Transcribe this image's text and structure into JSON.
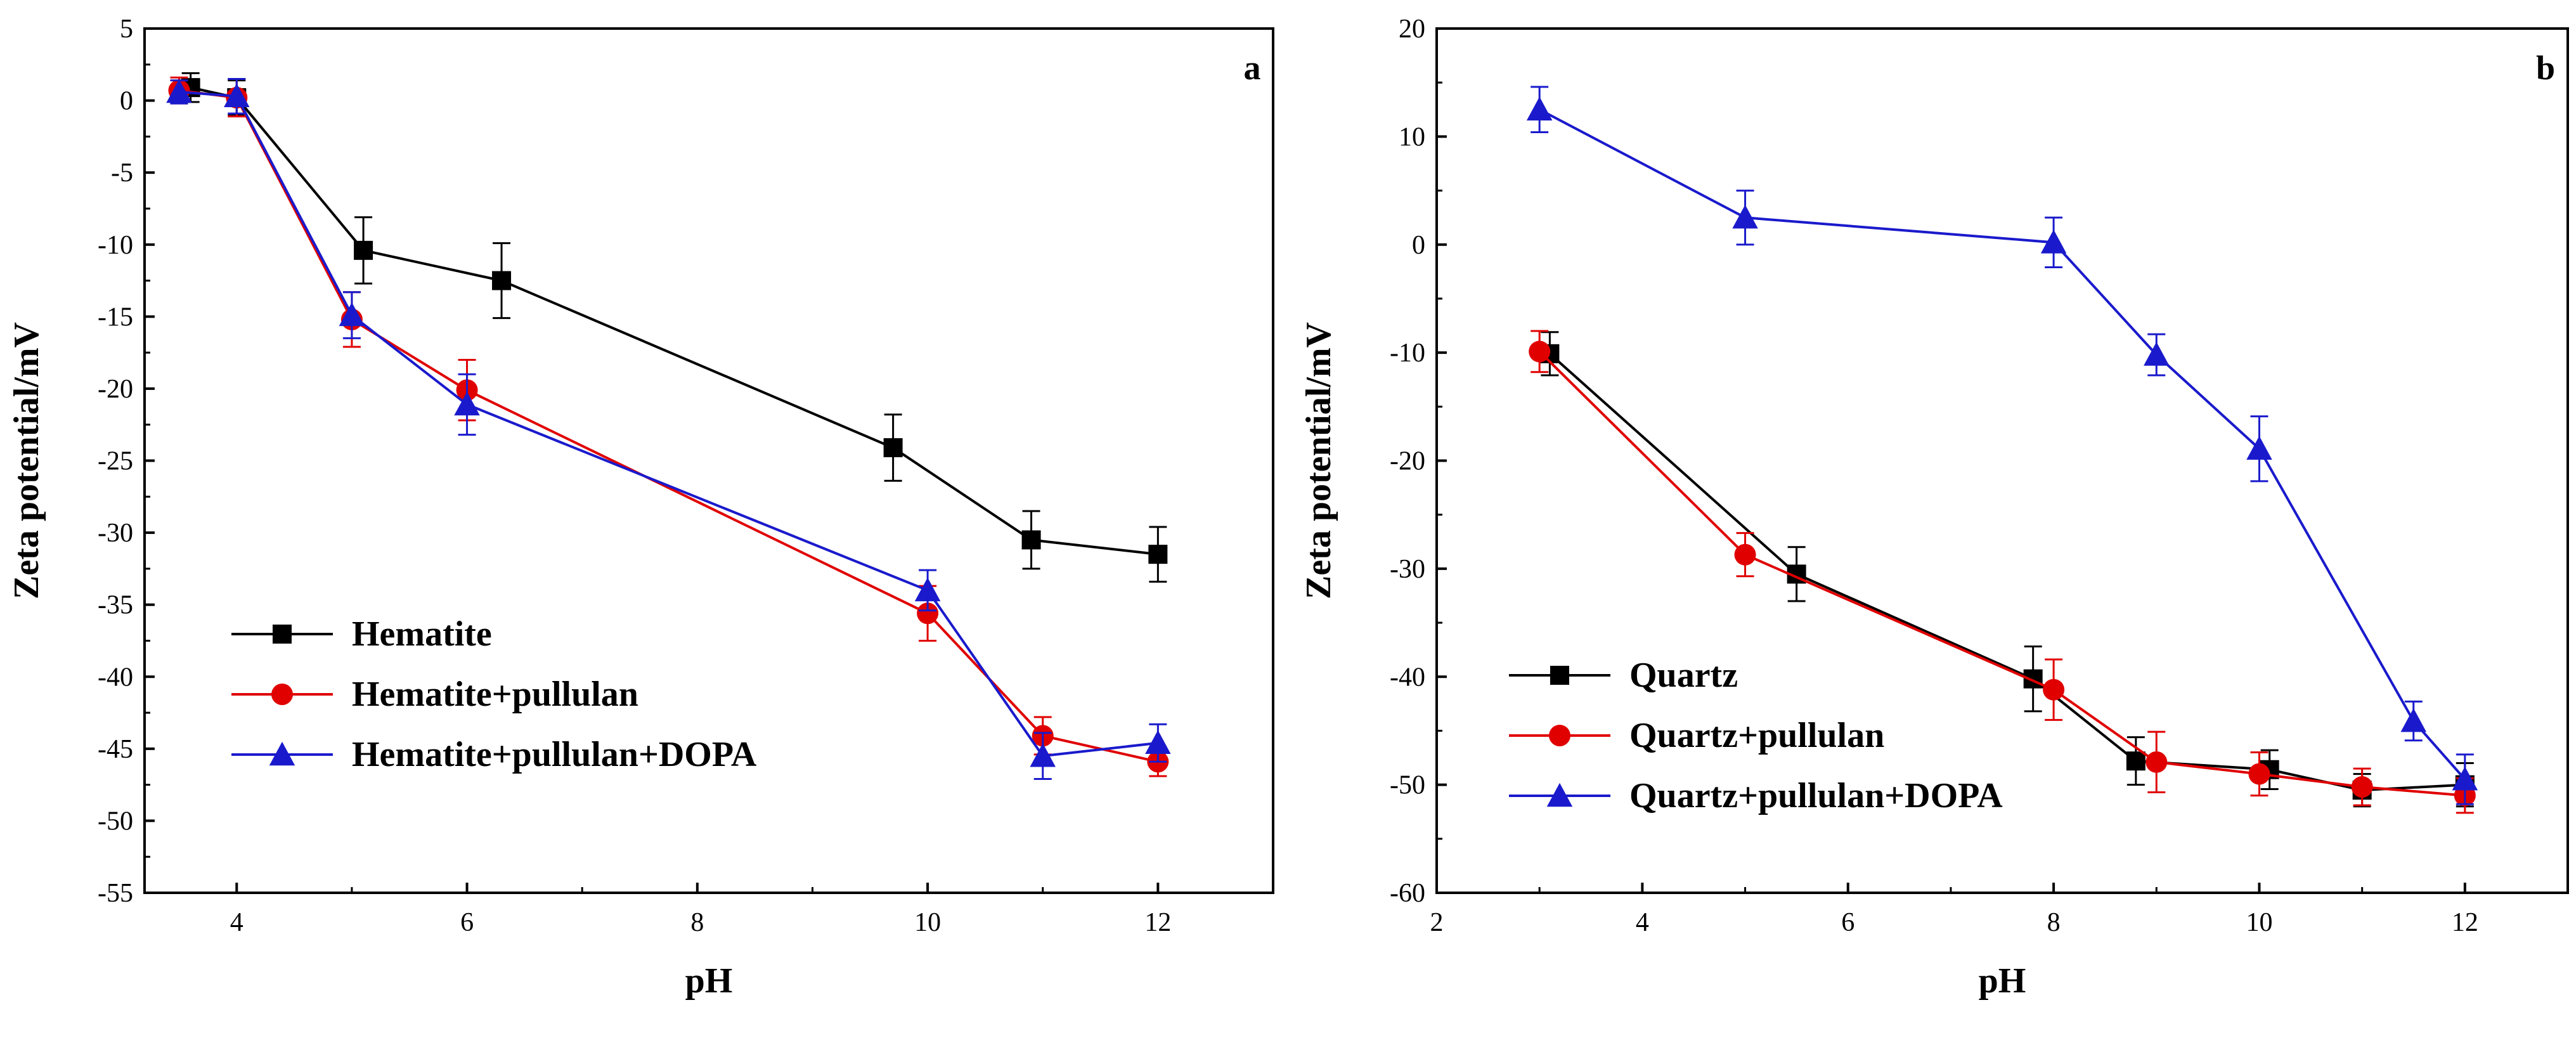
{
  "chart_data": [
    {
      "type": "line",
      "panel_label": "a",
      "xlabel": "pH",
      "ylabel": "Zeta potential/mV",
      "xlim": [
        3.2,
        13
      ],
      "ylim": [
        -55,
        5
      ],
      "xticks": [
        4,
        6,
        8,
        10,
        12
      ],
      "yticks": [
        5,
        0,
        -5,
        -10,
        -15,
        -20,
        -25,
        -30,
        -35,
        -40,
        -45,
        -50,
        -55
      ],
      "legend_position": "lower-left",
      "series": [
        {
          "name": "Hematite",
          "color": "#000000",
          "marker": "square",
          "x": [
            3.6,
            4.0,
            5.1,
            6.3,
            9.7,
            10.9,
            12.0
          ],
          "y": [
            0.9,
            0.2,
            -10.4,
            -12.5,
            -24.1,
            -30.5,
            -31.5
          ],
          "err": [
            1.0,
            1.2,
            2.3,
            2.6,
            2.3,
            2.0,
            1.9
          ]
        },
        {
          "name": "Hematite+pullulan",
          "color": "#e00000",
          "marker": "circle",
          "x": [
            3.5,
            4.0,
            5.0,
            6.0,
            10.0,
            11.0,
            12.0
          ],
          "y": [
            0.7,
            0.2,
            -15.2,
            -20.1,
            -35.6,
            -44.1,
            -45.9
          ],
          "err": [
            0.9,
            1.3,
            1.9,
            2.1,
            1.9,
            1.3,
            1.0
          ]
        },
        {
          "name": "Hematite+pullulan+DOPA",
          "color": "#1a1acc",
          "marker": "triangle",
          "x": [
            3.5,
            4.0,
            5.0,
            6.0,
            10.0,
            11.0,
            12.0
          ],
          "y": [
            0.6,
            0.3,
            -14.9,
            -21.1,
            -34.0,
            -45.5,
            -44.6
          ],
          "err": [
            0.8,
            1.2,
            1.6,
            2.1,
            1.4,
            1.6,
            1.3
          ]
        }
      ]
    },
    {
      "type": "line",
      "panel_label": "b",
      "xlabel": "pH",
      "ylabel": "Zeta potential/mV",
      "xlim": [
        2,
        13
      ],
      "ylim": [
        -60,
        20
      ],
      "xticks": [
        2,
        4,
        6,
        8,
        10,
        12
      ],
      "yticks": [
        20,
        10,
        0,
        -10,
        -20,
        -30,
        -40,
        -50,
        -60
      ],
      "legend_position": "lower-left",
      "series": [
        {
          "name": "Quartz",
          "color": "#000000",
          "marker": "square",
          "x": [
            3.1,
            5.5,
            7.8,
            8.8,
            10.1,
            11.0,
            12.0
          ],
          "y": [
            -10.1,
            -30.5,
            -40.2,
            -47.8,
            -48.6,
            -50.5,
            -50.0
          ],
          "err": [
            2.0,
            2.5,
            3.0,
            2.2,
            1.8,
            1.5,
            2.0
          ]
        },
        {
          "name": "Quartz+pullulan",
          "color": "#e00000",
          "marker": "circle",
          "x": [
            3.0,
            5.0,
            8.0,
            9.0,
            10.0,
            11.0,
            12.0
          ],
          "y": [
            -9.9,
            -28.7,
            -41.2,
            -47.9,
            -49.0,
            -50.2,
            -51.0
          ],
          "err": [
            1.9,
            2.0,
            2.8,
            2.8,
            2.0,
            1.7,
            1.6
          ]
        },
        {
          "name": "Quartz+pullulan+DOPA",
          "color": "#1a1acc",
          "marker": "triangle",
          "x": [
            3.0,
            5.0,
            8.0,
            9.0,
            10.0,
            11.5,
            12.0
          ],
          "y": [
            12.5,
            2.5,
            0.2,
            -10.2,
            -18.9,
            -44.1,
            -49.5
          ],
          "err": [
            2.1,
            2.5,
            2.3,
            1.9,
            3.0,
            1.8,
            2.3
          ]
        }
      ]
    }
  ]
}
